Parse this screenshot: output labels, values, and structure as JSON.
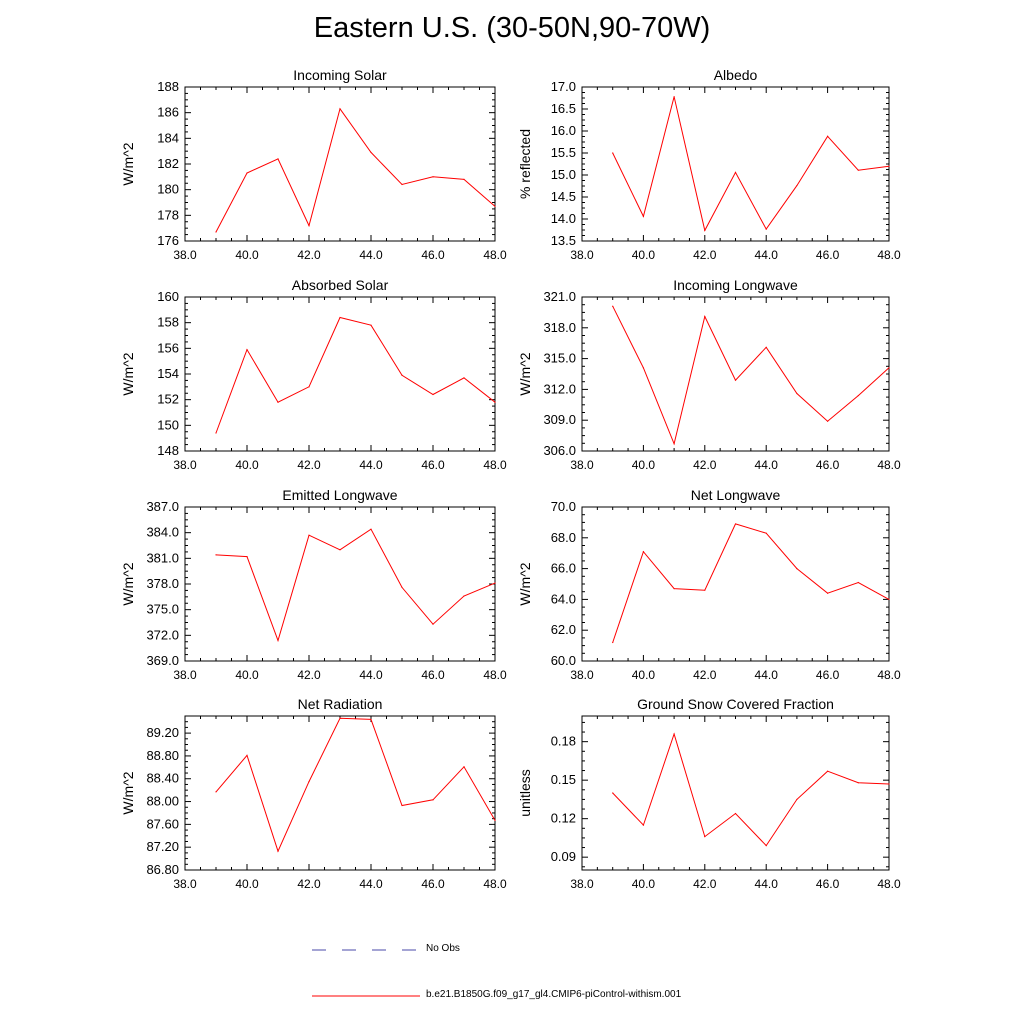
{
  "title": "Eastern U.S. (30-50N,90-70W)",
  "chart_data": [
    {
      "type": "line",
      "title": "Incoming Solar",
      "ylabel": "W/m^2",
      "xlim": [
        38,
        48
      ],
      "ylim": [
        176,
        188
      ],
      "xticks": [
        "38.0",
        "40.0",
        "42.0",
        "44.0",
        "46.0",
        "48.0"
      ],
      "yticks": [
        "176",
        "178",
        "180",
        "182",
        "184",
        "186",
        "188"
      ],
      "series": [
        {
          "name": "b.e21.B1850G.f09_g17_gl4.CMIP6-piControl-withism.001",
          "x": [
            39,
            40,
            41,
            42,
            43,
            44,
            45,
            46,
            47,
            48
          ],
          "values": [
            176.7,
            181.3,
            182.4,
            177.2,
            186.3,
            182.9,
            180.4,
            181.0,
            180.8,
            178.7
          ]
        }
      ]
    },
    {
      "type": "line",
      "title": "Albedo",
      "ylabel": "% reflected",
      "xlim": [
        38,
        48
      ],
      "ylim": [
        13.5,
        17.0
      ],
      "xticks": [
        "38.0",
        "40.0",
        "42.0",
        "44.0",
        "46.0",
        "48.0"
      ],
      "yticks": [
        "13.5",
        "14.0",
        "14.5",
        "15.0",
        "15.5",
        "16.0",
        "16.5",
        "17.0"
      ],
      "series": [
        {
          "name": "b.e21.B1850G.f09_g17_gl4.CMIP6-piControl-withism.001",
          "x": [
            39,
            40,
            41,
            42,
            43,
            44,
            45,
            46,
            47,
            48
          ],
          "values": [
            15.5,
            14.06,
            16.78,
            13.74,
            15.06,
            13.77,
            14.76,
            15.88,
            15.11,
            15.2
          ]
        }
      ]
    },
    {
      "type": "line",
      "title": "Absorbed Solar",
      "ylabel": "W/m^2",
      "xlim": [
        38,
        48
      ],
      "ylim": [
        148,
        160
      ],
      "xticks": [
        "38.0",
        "40.0",
        "42.0",
        "44.0",
        "46.0",
        "48.0"
      ],
      "yticks": [
        "148",
        "150",
        "152",
        "154",
        "156",
        "158",
        "160"
      ],
      "series": [
        {
          "name": "b.e21.B1850G.f09_g17_gl4.CMIP6-piControl-withism.001",
          "x": [
            39,
            40,
            41,
            42,
            43,
            44,
            45,
            46,
            47,
            48
          ],
          "values": [
            149.4,
            155.9,
            151.8,
            153.0,
            158.4,
            157.8,
            153.9,
            152.4,
            153.7,
            151.8
          ]
        }
      ]
    },
    {
      "type": "line",
      "title": "Incoming Longwave",
      "ylabel": "W/m^2",
      "xlim": [
        38,
        48
      ],
      "ylim": [
        306,
        321
      ],
      "xticks": [
        "38.0",
        "40.0",
        "42.0",
        "44.0",
        "46.0",
        "48.0"
      ],
      "yticks": [
        "306.0",
        "309.0",
        "312.0",
        "315.0",
        "318.0",
        "321.0"
      ],
      "series": [
        {
          "name": "b.e21.B1850G.f09_g17_gl4.CMIP6-piControl-withism.001",
          "x": [
            39,
            40,
            41,
            42,
            43,
            44,
            45,
            46,
            47,
            48
          ],
          "values": [
            320.1,
            314.1,
            306.7,
            319.1,
            312.9,
            316.1,
            311.6,
            308.9,
            311.4,
            314.1
          ]
        }
      ]
    },
    {
      "type": "line",
      "title": "Emitted Longwave",
      "ylabel": "W/m^2",
      "xlim": [
        38,
        48
      ],
      "ylim": [
        369,
        387
      ],
      "xticks": [
        "38.0",
        "40.0",
        "42.0",
        "44.0",
        "46.0",
        "48.0"
      ],
      "yticks": [
        "369.0",
        "372.0",
        "375.0",
        "378.0",
        "381.0",
        "384.0",
        "387.0"
      ],
      "series": [
        {
          "name": "b.e21.B1850G.f09_g17_gl4.CMIP6-piControl-withism.001",
          "x": [
            39,
            40,
            41,
            42,
            43,
            44,
            45,
            46,
            47,
            48
          ],
          "values": [
            381.4,
            381.2,
            371.4,
            383.7,
            382.0,
            384.4,
            377.6,
            373.3,
            376.6,
            378.1
          ]
        }
      ]
    },
    {
      "type": "line",
      "title": "Net Longwave",
      "ylabel": "W/m^2",
      "xlim": [
        38,
        48
      ],
      "ylim": [
        60,
        70
      ],
      "xticks": [
        "38.0",
        "40.0",
        "42.0",
        "44.0",
        "46.0",
        "48.0"
      ],
      "yticks": [
        "60.0",
        "62.0",
        "64.0",
        "66.0",
        "68.0",
        "70.0"
      ],
      "series": [
        {
          "name": "b.e21.B1850G.f09_g17_gl4.CMIP6-piControl-withism.001",
          "x": [
            39,
            40,
            41,
            42,
            43,
            44,
            45,
            46,
            47,
            48
          ],
          "values": [
            61.2,
            67.1,
            64.7,
            64.6,
            68.9,
            68.3,
            66.0,
            64.4,
            65.1,
            64.0
          ]
        }
      ]
    },
    {
      "type": "line",
      "title": "Net Radiation",
      "ylabel": "W/m^2",
      "xlim": [
        38,
        48
      ],
      "ylim": [
        86.8,
        89.5
      ],
      "xticks": [
        "38.0",
        "40.0",
        "42.0",
        "44.0",
        "46.0",
        "48.0"
      ],
      "yticks": [
        "86.80",
        "87.20",
        "87.60",
        "88.00",
        "88.40",
        "88.80",
        "89.20"
      ],
      "series": [
        {
          "name": "b.e21.B1850G.f09_g17_gl4.CMIP6-piControl-withism.001",
          "x": [
            39,
            40,
            41,
            42,
            43,
            44,
            45,
            46,
            47,
            48
          ],
          "values": [
            88.17,
            88.81,
            87.13,
            88.35,
            89.46,
            89.44,
            87.93,
            88.03,
            88.61,
            87.67
          ]
        }
      ]
    },
    {
      "type": "line",
      "title": "Ground Snow Covered Fraction",
      "ylabel": "unitless",
      "xlim": [
        38,
        48
      ],
      "ylim": [
        0.08,
        0.2
      ],
      "xticks": [
        "38.0",
        "40.0",
        "42.0",
        "44.0",
        "46.0",
        "48.0"
      ],
      "yticks": [
        "0.09",
        "0.12",
        "0.15",
        "0.18"
      ],
      "series": [
        {
          "name": "b.e21.B1850G.f09_g17_gl4.CMIP6-piControl-withism.001",
          "x": [
            39,
            40,
            41,
            42,
            43,
            44,
            45,
            46,
            47,
            48
          ],
          "values": [
            0.14,
            0.115,
            0.186,
            0.106,
            0.124,
            0.099,
            0.135,
            0.157,
            0.148,
            0.147
          ]
        }
      ]
    }
  ],
  "legend": [
    {
      "label": "No Obs",
      "color": "#4a4aa8",
      "style": "dashed"
    },
    {
      "label": "b.e21.B1850G.f09_g17_gl4.CMIP6-piControl-withism.001",
      "color": "#ff0000",
      "style": "solid"
    }
  ]
}
